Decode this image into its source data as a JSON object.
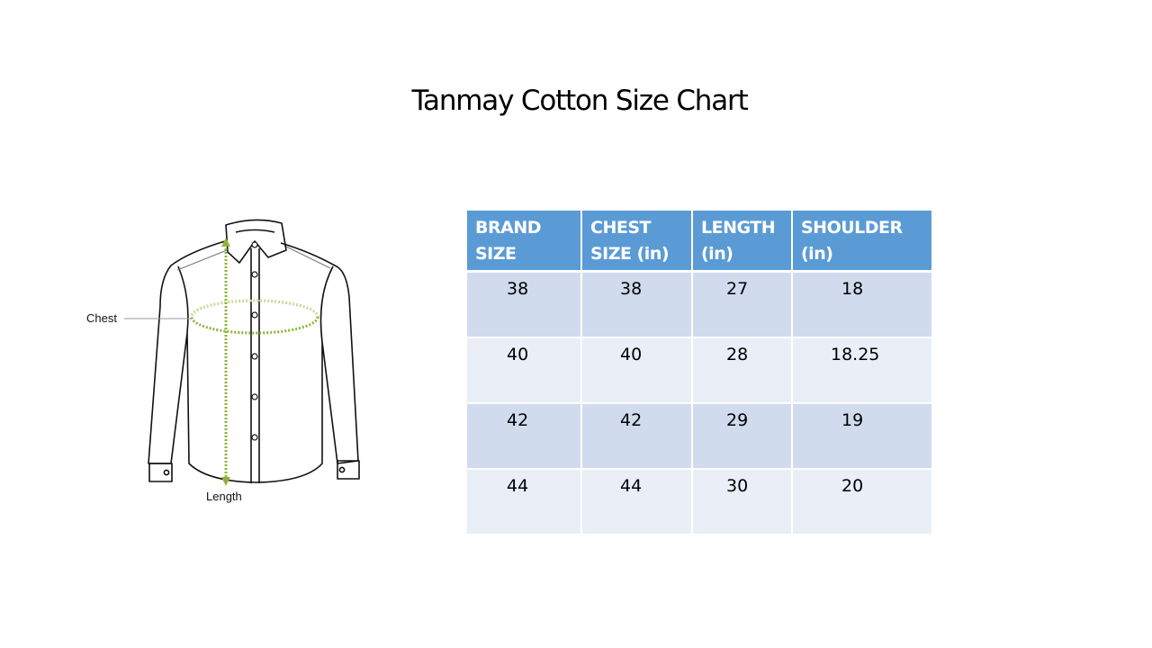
{
  "title": "Tanmay Cotton Size Chart",
  "diagram": {
    "chest_label": "Chest",
    "length_label": "Length",
    "measure_color": "#8db43a"
  },
  "table": {
    "headers": [
      [
        "BRAND",
        "SIZE"
      ],
      [
        "CHEST",
        "SIZE (in)"
      ],
      [
        "LENGTH",
        "(in)"
      ],
      [
        "SHOULDER",
        "(in)"
      ]
    ],
    "rows": [
      [
        "38",
        "38",
        "27",
        "18"
      ],
      [
        "40",
        "40",
        "28",
        "18.25"
      ],
      [
        "42",
        "42",
        "29",
        "19"
      ],
      [
        "44",
        "44",
        "30",
        "20"
      ]
    ],
    "colors": {
      "header": "#5b9bd5",
      "row_dark": "#d0dbee",
      "row_light": "#e9eef7"
    }
  }
}
